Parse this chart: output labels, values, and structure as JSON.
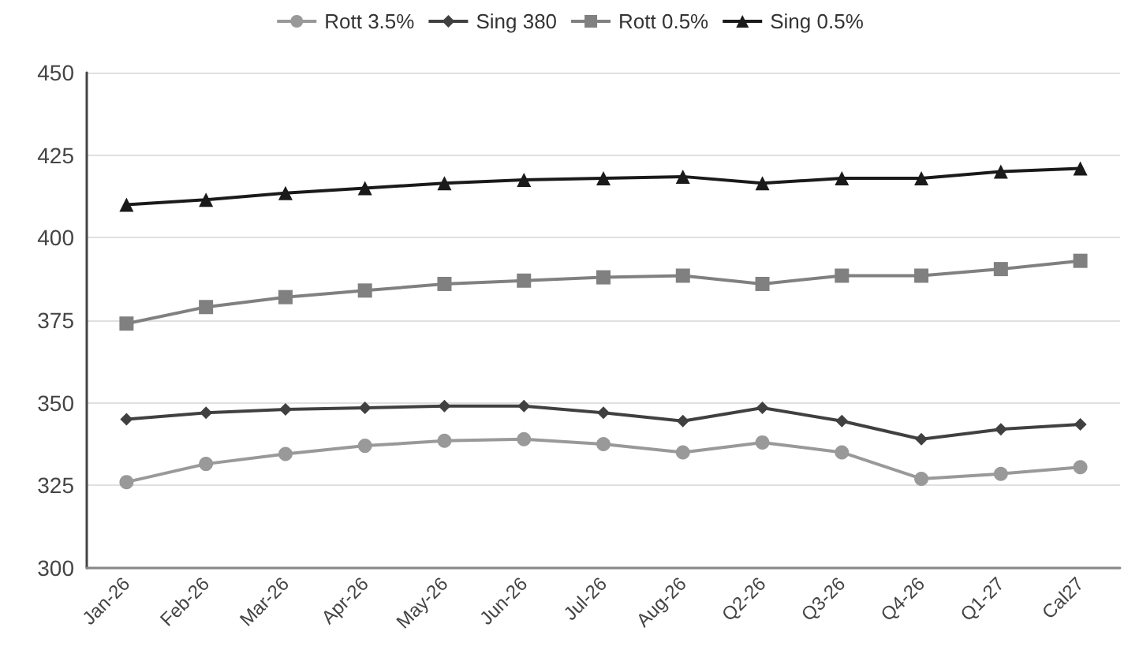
{
  "chart_data": {
    "type": "line",
    "categories": [
      "Jan-26",
      "Feb-26",
      "Mar-26",
      "Apr-26",
      "May-26",
      "Jun-26",
      "Jul-26",
      "Aug-26",
      "Q2-26",
      "Q3-26",
      "Q4-26",
      "Q1-27",
      "Cal27"
    ],
    "series": [
      {
        "name": "Rott 3.5%",
        "color": "#999999",
        "marker": "circle",
        "values": [
          326,
          331.5,
          334.5,
          337,
          338.5,
          339,
          337.5,
          335,
          338,
          335,
          327,
          328.5,
          330.5
        ]
      },
      {
        "name": "Sing 380",
        "color": "#404040",
        "marker": "diamond",
        "values": [
          345,
          347,
          348,
          348.5,
          349,
          349,
          347,
          344.5,
          348.5,
          344.5,
          339,
          342,
          343.5
        ]
      },
      {
        "name": "Rott 0.5%",
        "color": "#808080",
        "marker": "square",
        "values": [
          374,
          379,
          382,
          384,
          386,
          387,
          388,
          388.5,
          386,
          388.5,
          388.5,
          390.5,
          393
        ]
      },
      {
        "name": "Sing 0.5%",
        "color": "#1a1a1a",
        "marker": "triangle",
        "values": [
          410,
          411.5,
          413.5,
          415,
          416.5,
          417.5,
          418,
          418.5,
          416.5,
          418,
          418,
          420,
          421
        ]
      }
    ],
    "ylim": [
      300,
      450
    ],
    "yticks": [
      300,
      325,
      350,
      375,
      400,
      425,
      450
    ],
    "grid": "y",
    "legend": "top"
  }
}
